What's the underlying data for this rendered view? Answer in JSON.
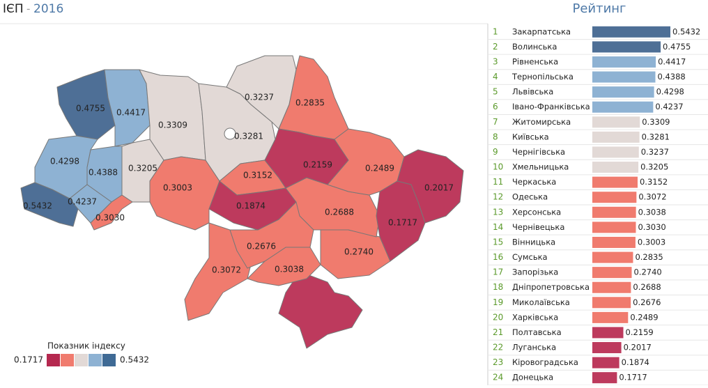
{
  "header": {
    "title": "ІЄП",
    "separator": "-",
    "year": "2016",
    "ranking_title": "Рейтинг"
  },
  "chart_data": {
    "type": "bar",
    "categories": [
      "Закарпатська",
      "Волинська",
      "Рівненська",
      "Тернопільська",
      "Львівська",
      "Івано-Франківська",
      "Житомирська",
      "Київська",
      "Чернігівська",
      "Хмельницька",
      "Черкаська",
      "Одеська",
      "Херсонська",
      "Чернівецька",
      "Вінницька",
      "Сумська",
      "Запорізька",
      "Дніпропетровська",
      "Миколаївська",
      "Харківська",
      "Полтавська",
      "Луганська",
      "Кіровоградська",
      "Донецька"
    ],
    "ranks": [
      1,
      2,
      3,
      4,
      5,
      6,
      7,
      8,
      9,
      10,
      11,
      12,
      13,
      14,
      15,
      16,
      17,
      18,
      19,
      20,
      21,
      22,
      23,
      24
    ],
    "values": [
      0.5432,
      0.4755,
      0.4417,
      0.4388,
      0.4298,
      0.4237,
      0.3309,
      0.3281,
      0.3237,
      0.3205,
      0.3152,
      0.3072,
      0.3038,
      0.303,
      0.3003,
      0.2835,
      0.274,
      0.2688,
      0.2676,
      0.2489,
      0.2159,
      0.2017,
      0.1874,
      0.1717
    ],
    "value_labels": [
      "0.5432",
      "0.4755",
      "0.4417",
      "0.4388",
      "0.4298",
      "0.4237",
      "0.3309",
      "0.3281",
      "0.3237",
      "0.3205",
      "0.3152",
      "0.3072",
      "0.3038",
      "0.3030",
      "0.3003",
      "0.2835",
      "0.2740",
      "0.2688",
      "0.2676",
      "0.2489",
      "0.2159",
      "0.2017",
      "0.1874",
      "0.1717"
    ],
    "colors": [
      "#4e6f96",
      "#4e6f96",
      "#8eb2d3",
      "#8eb2d3",
      "#8eb2d3",
      "#8eb2d3",
      "#e2d9d6",
      "#e2d9d6",
      "#e2d9d6",
      "#e2d9d6",
      "#f07b6e",
      "#f07b6e",
      "#f07b6e",
      "#f07b6e",
      "#f07b6e",
      "#f07b6e",
      "#f07b6e",
      "#f07b6e",
      "#f07b6e",
      "#f07b6e",
      "#bd3a5d",
      "#bd3a5d",
      "#bd3a5d",
      "#bd3a5d"
    ],
    "legend_title": "Показник індексу",
    "legend_min": 0.1717,
    "legend_max": 0.5432,
    "legend_colors": [
      "#b5284f",
      "#f07b6e",
      "#e2d9d6",
      "#8eb2d3",
      "#3f6a95"
    ]
  }
}
